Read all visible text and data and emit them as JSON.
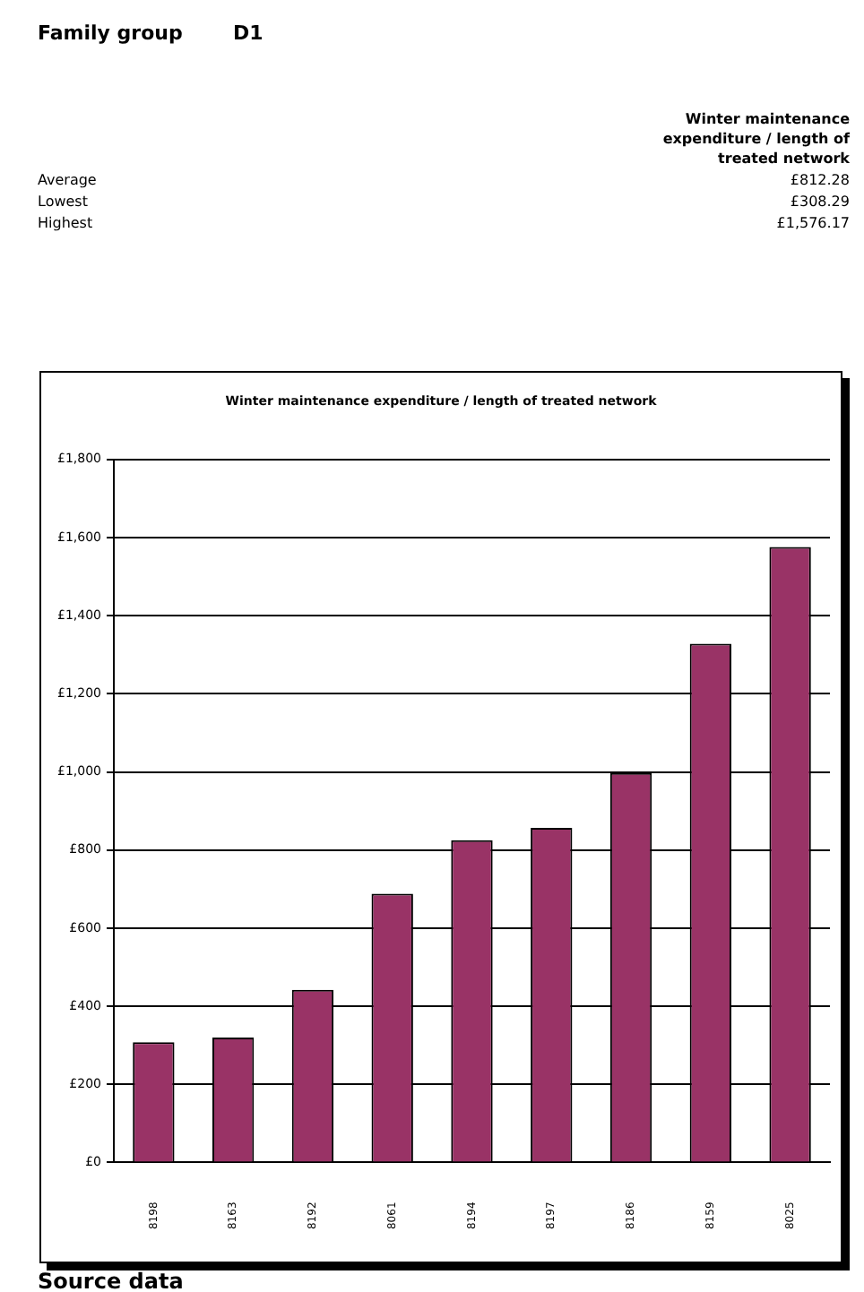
{
  "chart_data": {
    "type": "bar",
    "title": "Winter maintenance expenditure / length of treated network",
    "categories": [
      "8198",
      "8163",
      "8192",
      "8061",
      "8194",
      "8197",
      "8186",
      "8159",
      "8025"
    ],
    "values": [
      308,
      320,
      442,
      688,
      825,
      857,
      997,
      1328,
      1576
    ],
    "color": "#993366",
    "ylim": [
      0,
      1800
    ],
    "yticks": [
      {
        "value": 0,
        "label": "£0"
      },
      {
        "value": 200,
        "label": "£200"
      },
      {
        "value": 400,
        "label": "£400"
      },
      {
        "value": 600,
        "label": "£600"
      },
      {
        "value": 800,
        "label": "£800"
      },
      {
        "value": 1000,
        "label": "£1,000"
      },
      {
        "value": 1200,
        "label": "£1,200"
      },
      {
        "value": 1400,
        "label": "£1,400"
      },
      {
        "value": 1600,
        "label": "£1,600"
      },
      {
        "value": 1800,
        "label": "£1,800"
      }
    ],
    "grid": "y",
    "annotations": [
      "Family group",
      "D1",
      "Winter maintenance expenditure / length of treated network",
      "Average",
      "£812.28",
      "Lowest",
      "£308.29",
      "Highest",
      "£1,576.17",
      "Source data"
    ]
  }
}
